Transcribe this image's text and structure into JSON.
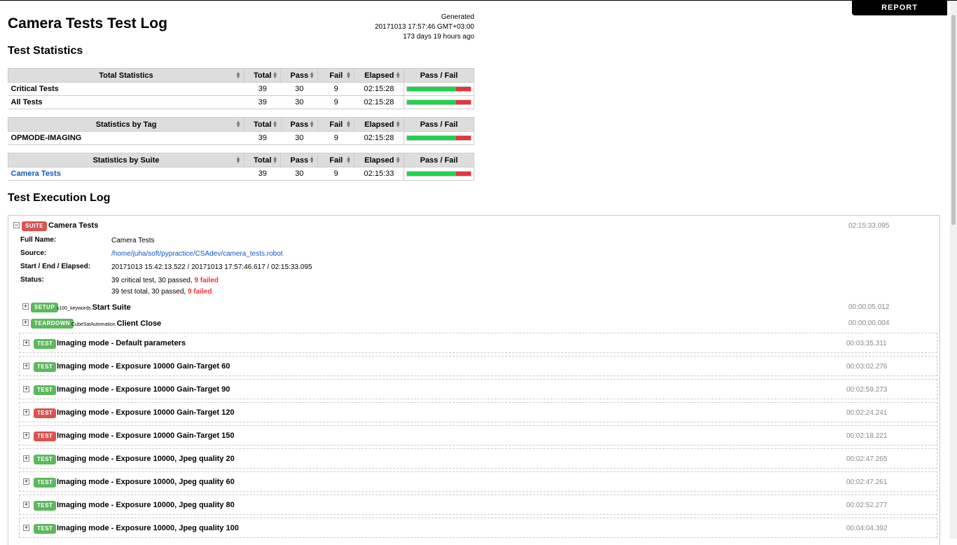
{
  "report_label": "REPORT",
  "title": "Camera Tests Test Log",
  "generated": {
    "label": "Generated",
    "timestamp": "20171013 17:57:46 GMT+03:00",
    "ago": "173 days 19 hours ago"
  },
  "statistics_heading": "Test Statistics",
  "col_headers": {
    "total": "Total",
    "pass": "Pass",
    "fail": "Fail",
    "elapsed": "Elapsed",
    "passfail": "Pass / Fail"
  },
  "stat_tables": [
    {
      "title": "Total Statistics",
      "rows": [
        {
          "name": "Critical Tests",
          "total": "39",
          "pass": "30",
          "fail": "9",
          "elapsed": "02:15:28",
          "pass_ratio": 0.769
        },
        {
          "name": "All Tests",
          "total": "39",
          "pass": "30",
          "fail": "9",
          "elapsed": "02:15:28",
          "pass_ratio": 0.769
        }
      ]
    },
    {
      "title": "Statistics by Tag",
      "rows": [
        {
          "name": "OPMODE-IMAGING",
          "total": "39",
          "pass": "30",
          "fail": "9",
          "elapsed": "02:15:28",
          "pass_ratio": 0.769
        }
      ]
    },
    {
      "title": "Statistics by Suite",
      "rows": [
        {
          "name": "Camera Tests",
          "total": "39",
          "pass": "30",
          "fail": "9",
          "elapsed": "02:15:33",
          "pass_ratio": 0.769,
          "link": true
        }
      ]
    }
  ],
  "log_heading": "Test Execution Log",
  "suite": {
    "label": "SUITE",
    "name": "Camera Tests",
    "elapsed": "02:15:33.095",
    "full_name_key": "Full Name:",
    "full_name": "Camera Tests",
    "source_key": "Source:",
    "source": "/home/juha/soft/pypractice/CSAdev/camera_tests.robot",
    "times_key": "Start / End / Elapsed:",
    "times": "20171013 15:42:13.522 / 20171013 17:57:46.617 / 02:15:33.095",
    "status_key": "Status:",
    "status_line1_prefix": "39 critical test, 30 passed, ",
    "status_line1_fail": "9 failed",
    "status_line2_prefix": "39 test total, 30 passed, ",
    "status_line2_fail": "9 failed"
  },
  "setup": {
    "label": "SETUP",
    "lib": "s100_keywords.",
    "name": "Start Suite",
    "elapsed": "00:00:05.012"
  },
  "teardown": {
    "label": "TEARDOWN",
    "lib": "CubeSatAutomation.",
    "name": "Client Close",
    "elapsed": "00:00:00.004"
  },
  "test_label": "TEST",
  "tests": [
    {
      "name": "Imaging mode - Default parameters",
      "elapsed": "00:03:35.311",
      "status": "pass"
    },
    {
      "name": "Imaging mode - Exposure 10000 Gain-Target 60",
      "elapsed": "00:03:02.276",
      "status": "pass"
    },
    {
      "name": "Imaging mode - Exposure 10000 Gain-Target 90",
      "elapsed": "00:02:59.273",
      "status": "pass"
    },
    {
      "name": "Imaging mode - Exposure 10000 Gain-Target 120",
      "elapsed": "00:02:24.241",
      "status": "fail"
    },
    {
      "name": "Imaging mode - Exposure 10000 Gain-Target 150",
      "elapsed": "00:02:18.221",
      "status": "fail"
    },
    {
      "name": "Imaging mode - Exposure 10000, Jpeg quality 20",
      "elapsed": "00:02:47.265",
      "status": "pass"
    },
    {
      "name": "Imaging mode - Exposure 10000, Jpeg quality 60",
      "elapsed": "00:02:47.261",
      "status": "pass"
    },
    {
      "name": "Imaging mode - Exposure 10000, Jpeg quality 80",
      "elapsed": "00:02:52.277",
      "status": "pass"
    },
    {
      "name": "Imaging mode - Exposure 10000, Jpeg quality 100",
      "elapsed": "00:04:04.392",
      "status": "pass"
    }
  ],
  "colors": {
    "pass": "#1ed34b",
    "fail": "#e7343f",
    "label_pass": "#5cb85c",
    "label_fail": "#d9534f",
    "link": "#1155cc"
  }
}
